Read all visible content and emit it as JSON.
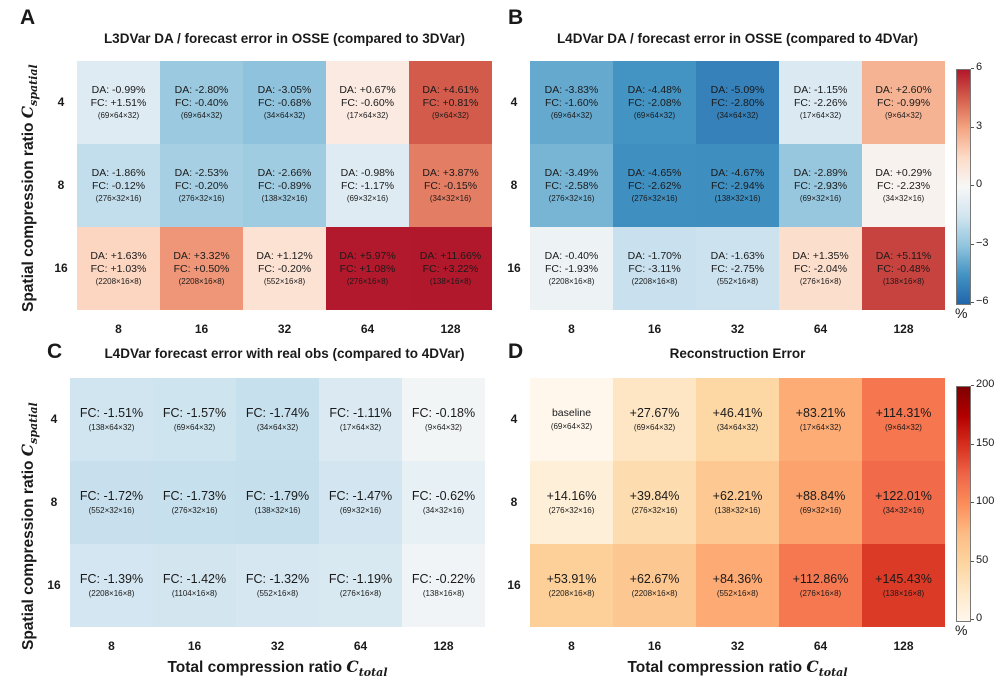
{
  "chart_data": [
    {
      "type": "heatmap",
      "panel": "A",
      "title": "L3DVar DA / forecast error in OSSE (compared to 3DVar)",
      "xlabel": "",
      "ylabel": "Spatial compression ratio C_spatial",
      "ylabel_main": "Spatial compression ratio ",
      "ylabel_sym": "C",
      "ylabel_sub": "spatial",
      "x_categories": [
        "8",
        "16",
        "32",
        "64",
        "128"
      ],
      "y_categories": [
        "4",
        "8",
        "16"
      ],
      "color_metric": "DA",
      "colormap": "RdBu_r",
      "clim": [
        -6,
        6
      ],
      "rows": [
        [
          {
            "DA": -0.99,
            "FC": 1.51,
            "shape": "(69×64×32)"
          },
          {
            "DA": -2.8,
            "FC": -0.4,
            "shape": "(69×64×32)"
          },
          {
            "DA": -3.05,
            "FC": -0.68,
            "shape": "(34×64×32)"
          },
          {
            "DA": 0.67,
            "FC": -0.6,
            "shape": "(17×64×32)"
          },
          {
            "DA": 4.61,
            "FC": 0.81,
            "shape": "(9×64×32)"
          }
        ],
        [
          {
            "DA": -1.86,
            "FC": -0.12,
            "shape": "(276×32×16)"
          },
          {
            "DA": -2.53,
            "FC": -0.2,
            "shape": "(276×32×16)"
          },
          {
            "DA": -2.66,
            "FC": -0.89,
            "shape": "(138×32×16)"
          },
          {
            "DA": -0.98,
            "FC": -1.17,
            "shape": "(69×32×16)"
          },
          {
            "DA": 3.87,
            "FC": -0.15,
            "shape": "(34×32×16)"
          }
        ],
        [
          {
            "DA": 1.63,
            "FC": 1.03,
            "shape": "(2208×16×8)"
          },
          {
            "DA": 3.32,
            "FC": 0.5,
            "shape": "(2208×16×8)"
          },
          {
            "DA": 1.12,
            "FC": -0.2,
            "shape": "(552×16×8)"
          },
          {
            "DA": 5.97,
            "FC": 1.08,
            "shape": "(276×16×8)"
          },
          {
            "DA": 11.66,
            "FC": 3.22,
            "shape": "(138×16×8)"
          }
        ]
      ]
    },
    {
      "type": "heatmap",
      "panel": "B",
      "title": "L4DVar DA / forecast error in OSSE (compared to 4DVar)",
      "xlabel": "",
      "ylabel": "",
      "x_categories": [
        "8",
        "16",
        "32",
        "64",
        "128"
      ],
      "y_categories": [
        "4",
        "8",
        "16"
      ],
      "color_metric": "DA",
      "colormap": "RdBu_r",
      "clim": [
        -6,
        6
      ],
      "colorbar": {
        "ticks": [
          "6",
          "3",
          "0",
          "−3",
          "−6"
        ],
        "tick_values": [
          6,
          3,
          0,
          -3,
          -6
        ],
        "unit": "%"
      },
      "rows": [
        [
          {
            "DA": -3.83,
            "FC": -1.6,
            "shape": "(69×64×32)"
          },
          {
            "DA": -4.48,
            "FC": -2.08,
            "shape": "(69×64×32)"
          },
          {
            "DA": -5.09,
            "FC": -2.8,
            "shape": "(34×64×32)"
          },
          {
            "DA": -1.15,
            "FC": -2.26,
            "shape": "(17×64×32)"
          },
          {
            "DA": 2.6,
            "FC": -0.99,
            "shape": "(9×64×32)"
          }
        ],
        [
          {
            "DA": -3.49,
            "FC": -2.58,
            "shape": "(276×32×16)"
          },
          {
            "DA": -4.65,
            "FC": -2.62,
            "shape": "(276×32×16)"
          },
          {
            "DA": -4.67,
            "FC": -2.94,
            "shape": "(138×32×16)"
          },
          {
            "DA": -2.89,
            "FC": -2.93,
            "shape": "(69×32×16)"
          },
          {
            "DA": 0.29,
            "FC": -2.23,
            "shape": "(34×32×16)"
          }
        ],
        [
          {
            "DA": -0.4,
            "FC": -1.93,
            "shape": "(2208×16×8)"
          },
          {
            "DA": -1.7,
            "FC": -3.11,
            "shape": "(2208×16×8)"
          },
          {
            "DA": -1.63,
            "FC": -2.75,
            "shape": "(552×16×8)"
          },
          {
            "DA": 1.35,
            "FC": -2.04,
            "shape": "(276×16×8)"
          },
          {
            "DA": 5.11,
            "FC": -0.48,
            "shape": "(138×16×8)"
          }
        ]
      ]
    },
    {
      "type": "heatmap",
      "panel": "C",
      "title": "L4DVar forecast error with real obs (compared to 4DVar)",
      "xlabel": "Total compression ratio C_total",
      "ylabel": "Spatial compression ratio C_spatial",
      "x_categories": [
        "8",
        "16",
        "32",
        "64",
        "128"
      ],
      "y_categories": [
        "4",
        "8",
        "16"
      ],
      "color_metric": "FC",
      "colormap": "RdBu_r",
      "clim": [
        -6,
        6
      ],
      "rows": [
        [
          {
            "FC": -1.51,
            "shape": "(138×64×32)"
          },
          {
            "FC": -1.57,
            "shape": "(69×64×32)"
          },
          {
            "FC": -1.74,
            "shape": "(34×64×32)"
          },
          {
            "FC": -1.11,
            "shape": "(17×64×32)"
          },
          {
            "FC": -0.18,
            "shape": "(9×64×32)"
          }
        ],
        [
          {
            "FC": -1.72,
            "shape": "(552×32×16)"
          },
          {
            "FC": -1.73,
            "shape": "(276×32×16)"
          },
          {
            "FC": -1.79,
            "shape": "(138×32×16)"
          },
          {
            "FC": -1.47,
            "shape": "(69×32×16)"
          },
          {
            "FC": -0.62,
            "shape": "(34×32×16)"
          }
        ],
        [
          {
            "FC": -1.39,
            "shape": "(2208×16×8)"
          },
          {
            "FC": -1.42,
            "shape": "(1104×16×8)"
          },
          {
            "FC": -1.32,
            "shape": "(552×16×8)"
          },
          {
            "FC": -1.19,
            "shape": "(276×16×8)"
          },
          {
            "FC": -0.22,
            "shape": "(138×16×8)"
          }
        ]
      ]
    },
    {
      "type": "heatmap",
      "panel": "D",
      "title": "Reconstruction Error",
      "xlabel": "Total compression ratio C_total",
      "ylabel": "",
      "x_categories": [
        "8",
        "16",
        "32",
        "64",
        "128"
      ],
      "y_categories": [
        "4",
        "8",
        "16"
      ],
      "color_metric": "value",
      "colormap": "OrRd",
      "clim": [
        0,
        200
      ],
      "colorbar": {
        "ticks": [
          "200",
          "150",
          "100",
          "50",
          "0"
        ],
        "tick_values": [
          200,
          150,
          100,
          50,
          0
        ],
        "unit": "%"
      },
      "rows": [
        [
          {
            "value": 0,
            "label": "baseline",
            "shape": "(69×64×32)"
          },
          {
            "value": 27.67,
            "shape": "(69×64×32)"
          },
          {
            "value": 46.41,
            "shape": "(34×64×32)"
          },
          {
            "value": 83.21,
            "shape": "(17×64×32)"
          },
          {
            "value": 114.31,
            "shape": "(9×64×32)"
          }
        ],
        [
          {
            "value": 14.16,
            "shape": "(276×32×16)"
          },
          {
            "value": 39.84,
            "shape": "(276×32×16)"
          },
          {
            "value": 62.21,
            "shape": "(138×32×16)"
          },
          {
            "value": 88.84,
            "shape": "(69×32×16)"
          },
          {
            "value": 122.01,
            "shape": "(34×32×16)"
          }
        ],
        [
          {
            "value": 53.91,
            "shape": "(2208×16×8)"
          },
          {
            "value": 62.67,
            "shape": "(2208×16×8)"
          },
          {
            "value": 84.36,
            "shape": "(552×16×8)"
          },
          {
            "value": 112.86,
            "shape": "(276×16×8)"
          },
          {
            "value": 145.43,
            "shape": "(138×16×8)"
          }
        ]
      ]
    }
  ],
  "labels": {
    "A": "A",
    "B": "B",
    "C": "C",
    "D": "D",
    "ylabel_main": "Spatial compression ratio ",
    "ylabel_sym": "C",
    "ylabel_sub": "spatial",
    "xlabel_main": "Total compression ratio ",
    "xlabel_sym": "C",
    "xlabel_sub": "total",
    "percent": "%"
  }
}
